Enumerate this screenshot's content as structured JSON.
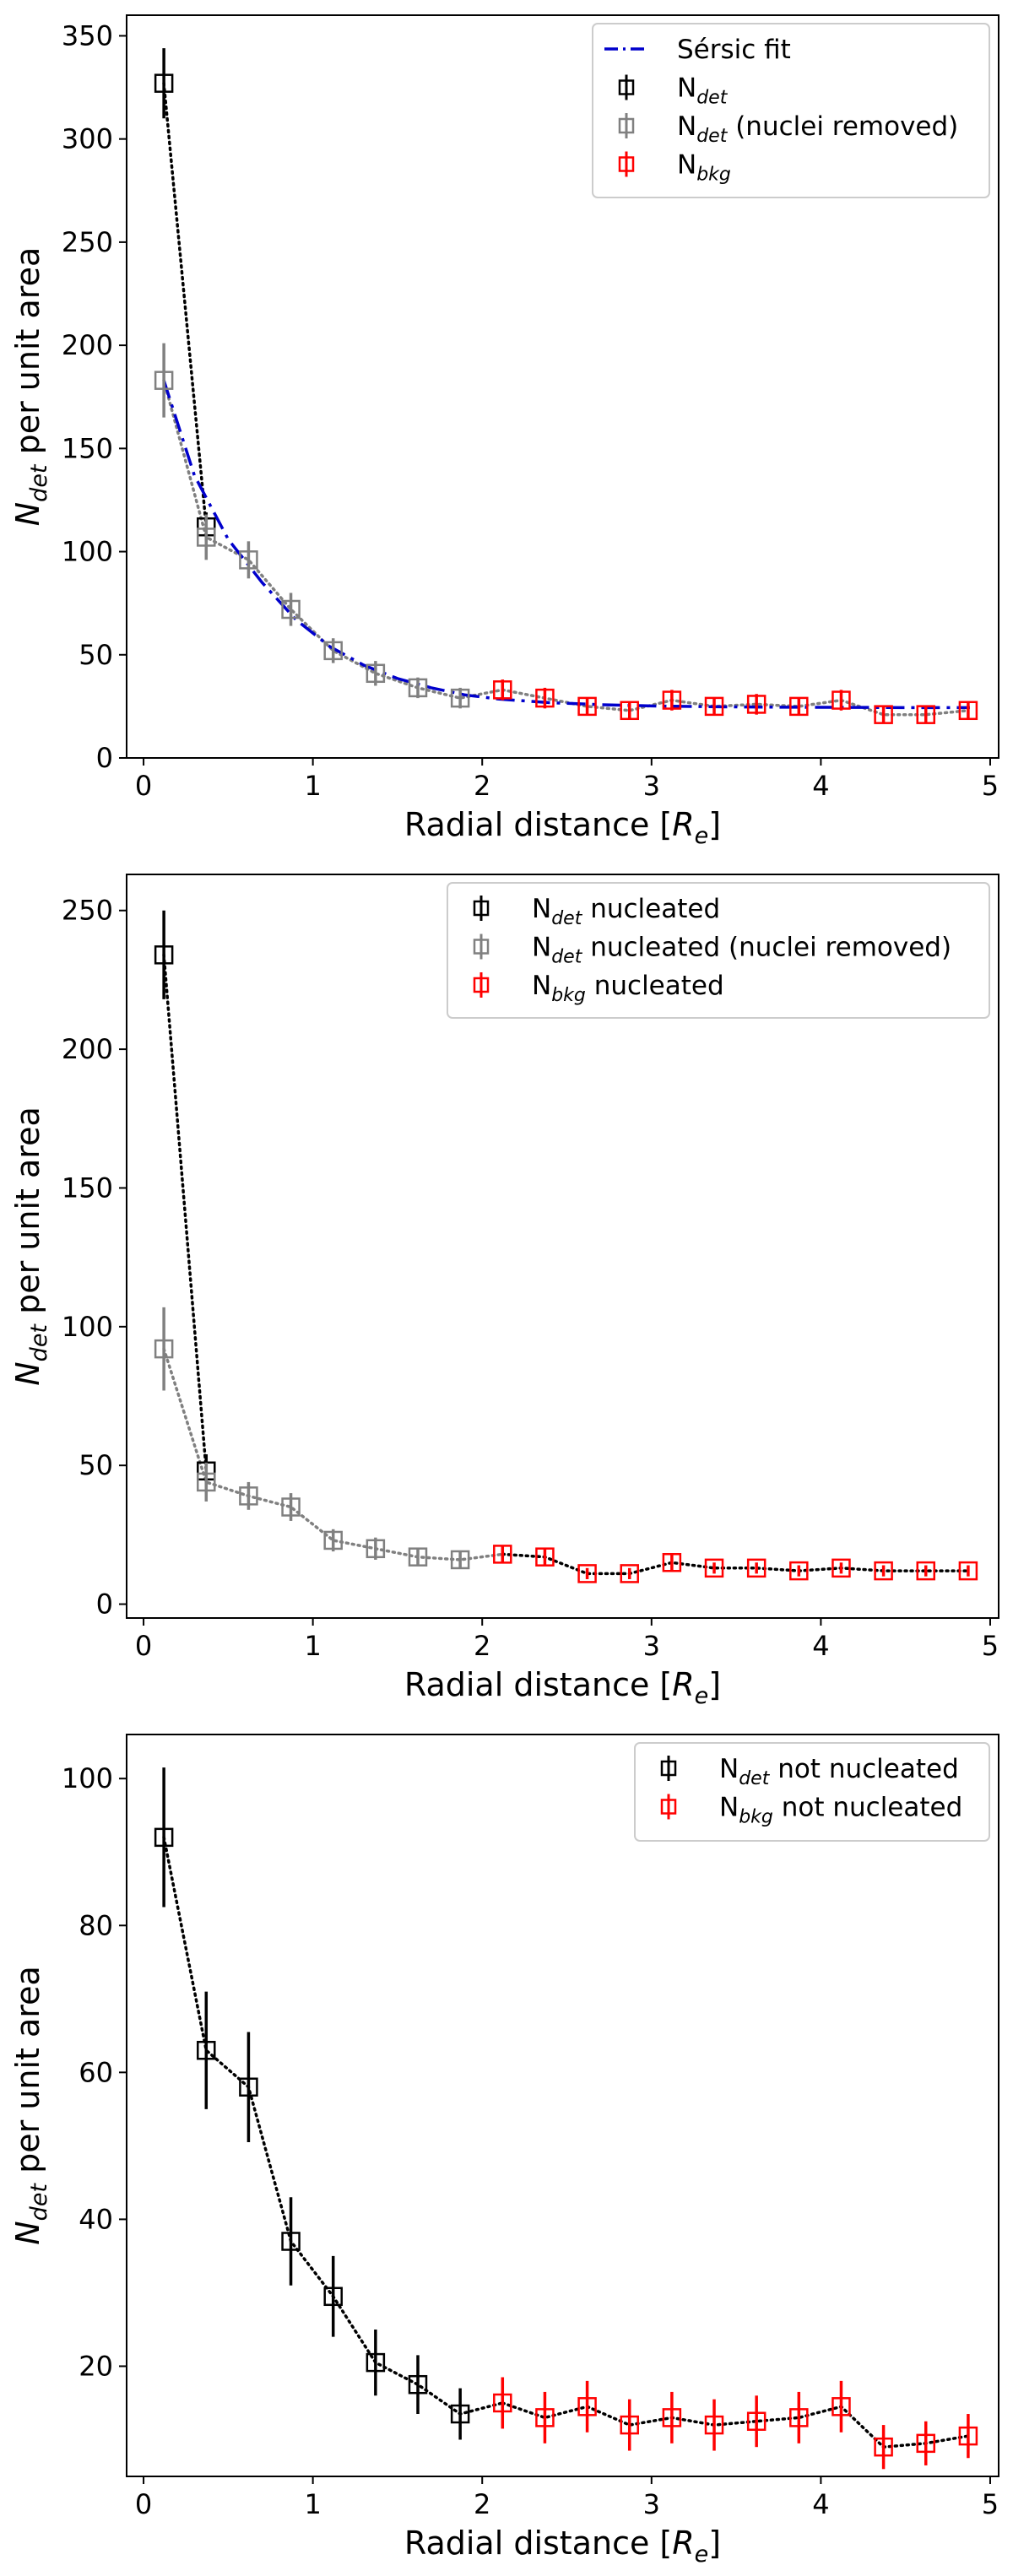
{
  "chart_data": [
    {
      "type": "scatter",
      "xlabel": "Radial distance",
      "xlabel_unit": "R",
      "xlabel_unit_sub": "e",
      "ylabel": "per unit area",
      "ylabel_main": "N",
      "ylabel_sub": "det",
      "xlim": [
        -0.1,
        5.05
      ],
      "ylim": [
        0,
        360
      ],
      "xticks": [
        0,
        1,
        2,
        3,
        4,
        5
      ],
      "yticks": [
        0,
        50,
        100,
        150,
        200,
        250,
        300,
        350
      ],
      "legend_position": "top-right",
      "series": [
        {
          "name": "Sérsic fit",
          "kind": "line",
          "color": "#0000cc",
          "x": [
            0.12,
            0.3,
            0.5,
            0.7,
            0.9,
            1.1,
            1.3,
            1.5,
            1.7,
            1.9,
            2.1,
            2.4,
            2.7,
            3.0,
            3.4,
            3.8,
            4.2,
            4.6,
            4.88
          ],
          "values": [
            183,
            137,
            106,
            85,
            67,
            54,
            45,
            38.5,
            34,
            30.5,
            28.5,
            26.8,
            25.8,
            25.2,
            24.8,
            24.6,
            24.5,
            24.4,
            24.4
          ]
        },
        {
          "name": "N",
          "sub": "det",
          "suffix": "",
          "kind": "errorbar",
          "color": "#000000",
          "connect_color": "#000000",
          "x": [
            0.12,
            0.37
          ],
          "values": [
            327,
            112
          ],
          "yerr": [
            17,
            7
          ]
        },
        {
          "name": "N",
          "sub": "det",
          "suffix": " (nuclei removed)",
          "kind": "errorbar",
          "color": "#808080",
          "connect_color": "#808080",
          "connect_to_next": true,
          "x": [
            0.12,
            0.37,
            0.62,
            0.87,
            1.12,
            1.37,
            1.62,
            1.87
          ],
          "values": [
            183,
            107,
            96,
            72,
            52,
            41,
            34,
            29
          ],
          "yerr": [
            18,
            11,
            9,
            8,
            6,
            6,
            5,
            5
          ]
        },
        {
          "name": "N",
          "sub": "bkg",
          "suffix": "",
          "kind": "errorbar",
          "color": "#ff0000",
          "connect_color": "#808080",
          "x": [
            2.12,
            2.37,
            2.62,
            2.87,
            3.12,
            3.37,
            3.62,
            3.87,
            4.12,
            4.37,
            4.62,
            4.87
          ],
          "values": [
            33,
            29,
            25,
            23,
            28,
            25,
            26,
            25,
            28,
            21,
            21,
            23
          ],
          "yerr": [
            5,
            5,
            4,
            4,
            5,
            4,
            5,
            4,
            5,
            4,
            4,
            4
          ]
        }
      ]
    },
    {
      "type": "scatter",
      "xlabel": "Radial distance",
      "xlabel_unit": "R",
      "xlabel_unit_sub": "e",
      "ylabel": "per unit area",
      "ylabel_main": "N",
      "ylabel_sub": "det",
      "xlim": [
        -0.1,
        5.05
      ],
      "ylim": [
        -5,
        263
      ],
      "xticks": [
        0,
        1,
        2,
        3,
        4,
        5
      ],
      "yticks": [
        0,
        50,
        100,
        150,
        200,
        250
      ],
      "legend_position": "top-right",
      "series": [
        {
          "name": "N",
          "sub": "det",
          "suffix": " nucleated",
          "kind": "errorbar",
          "color": "#000000",
          "connect_color": "#000000",
          "x": [
            0.12,
            0.37
          ],
          "values": [
            234,
            48
          ],
          "yerr": [
            16,
            6
          ]
        },
        {
          "name": "N",
          "sub": "det",
          "suffix": " nucleated (nuclei removed)",
          "kind": "errorbar",
          "color": "#808080",
          "connect_color": "#808080",
          "connect_to_next": true,
          "x": [
            0.12,
            0.37,
            0.62,
            0.87,
            1.12,
            1.37,
            1.62,
            1.87
          ],
          "values": [
            92,
            44,
            39,
            35,
            23,
            20,
            17,
            16
          ],
          "yerr": [
            15,
            7,
            5,
            5,
            4,
            4,
            3,
            3
          ]
        },
        {
          "name": "N",
          "sub": "bkg",
          "suffix": " nucleated",
          "kind": "errorbar",
          "color": "#ff0000",
          "connect_color": "#000000",
          "x": [
            2.12,
            2.37,
            2.62,
            2.87,
            3.12,
            3.37,
            3.62,
            3.87,
            4.12,
            4.37,
            4.62,
            4.87
          ],
          "values": [
            18,
            17,
            11,
            11,
            15,
            13,
            13,
            12,
            13,
            12,
            12,
            12
          ],
          "yerr": [
            3,
            3,
            2,
            2,
            3,
            2,
            2,
            2,
            2,
            2,
            2,
            2
          ]
        }
      ]
    },
    {
      "type": "scatter",
      "xlabel": "Radial distance",
      "xlabel_unit": "R",
      "xlabel_unit_sub": "e",
      "ylabel": "per unit area",
      "ylabel_main": "N",
      "ylabel_sub": "det",
      "xlim": [
        -0.1,
        5.05
      ],
      "ylim": [
        5,
        106
      ],
      "xticks": [
        0,
        1,
        2,
        3,
        4,
        5
      ],
      "yticks": [
        20,
        40,
        60,
        80,
        100
      ],
      "legend_position": "top-right",
      "series": [
        {
          "name": "N",
          "sub": "det",
          "suffix": " not nucleated",
          "kind": "errorbar",
          "color": "#000000",
          "connect_color": "#000000",
          "connect_to_next": true,
          "x": [
            0.12,
            0.37,
            0.62,
            0.87,
            1.12,
            1.37,
            1.62,
            1.87
          ],
          "values": [
            92,
            63,
            58,
            37,
            29.5,
            20.5,
            17.5,
            13.5
          ],
          "yerr": [
            9.5,
            8,
            7.5,
            6,
            5.5,
            4.5,
            4,
            3.5
          ]
        },
        {
          "name": "N",
          "sub": "bkg",
          "suffix": " not nucleated",
          "kind": "errorbar",
          "color": "#ff0000",
          "connect_color": "#000000",
          "x": [
            2.12,
            2.37,
            2.62,
            2.87,
            3.12,
            3.37,
            3.62,
            3.87,
            4.12,
            4.37,
            4.62,
            4.87
          ],
          "values": [
            15,
            13,
            14.5,
            12,
            13,
            12,
            12.5,
            13,
            14.5,
            9,
            9.5,
            10.5
          ],
          "yerr": [
            3.5,
            3.5,
            3.5,
            3.5,
            3.5,
            3.5,
            3.5,
            3.5,
            3.5,
            3,
            3,
            3
          ]
        }
      ]
    }
  ]
}
